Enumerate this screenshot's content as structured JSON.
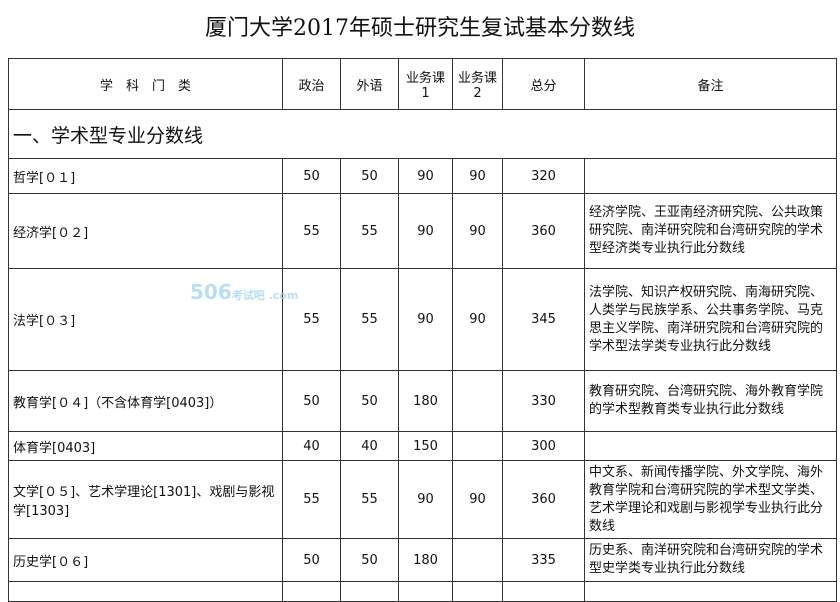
{
  "title": "厦门大学2017年硕士研究生复试基本分数线",
  "headers": [
    "学　科　门　类",
    "政治",
    "外语",
    "业务课1",
    "业务课2",
    "总分",
    "备注"
  ],
  "section": "一、学术型专业分数线",
  "rows": [
    {
      "subject": "哲学[０１]",
      "politics": "50",
      "language": "50",
      "course1": "90",
      "course2": "90",
      "total": "320",
      "note": ""
    },
    {
      "subject": "经济学[０２]",
      "politics": "55",
      "language": "55",
      "course1": "90",
      "course2": "90",
      "total": "360",
      "note": "经济学院、王亚南经济研究院、公共政策研究院、南洋研究院和台湾研究院的学术型经济类专业执行此分数线"
    },
    {
      "subject": "法学[０３]",
      "politics": "55",
      "language": "55",
      "course1": "90",
      "course2": "90",
      "total": "345",
      "note": "法学院、知识产权研究院、南海研究院、人类学与民族学系、公共事务学院、马克思主义学院、南洋研究院和台湾研究院的学术型法学类专业执行此分数线"
    },
    {
      "subject": "教育学[０４]（不含体育学[0403]）",
      "politics": "50",
      "language": "50",
      "course1": "180",
      "course2": "",
      "total": "330",
      "note": "教育研究院、台湾研究院、海外教育学院的学术型教育类专业执行此分数线"
    },
    {
      "subject": "体育学[0403]",
      "politics": "40",
      "language": "40",
      "course1": "150",
      "course2": "",
      "total": "300",
      "note": ""
    },
    {
      "subject": "文学[０５]、艺术学理论[1301]、戏剧与影视学[1303]",
      "politics": "55",
      "language": "55",
      "course1": "90",
      "course2": "90",
      "total": "360",
      "note": "中文系、新闻传播学院、外文学院、海外教育学院和台湾研究院的学术型文学类、艺术学理论和戏剧与影视学专业执行此分数线"
    },
    {
      "subject": "历史学[０６]",
      "politics": "50",
      "language": "50",
      "course1": "180",
      "course2": "",
      "total": "335",
      "note": "历史系、南洋研究院和台湾研究院的学术型史学类专业执行此分数线"
    }
  ],
  "watermark": "506考试吧 .com"
}
